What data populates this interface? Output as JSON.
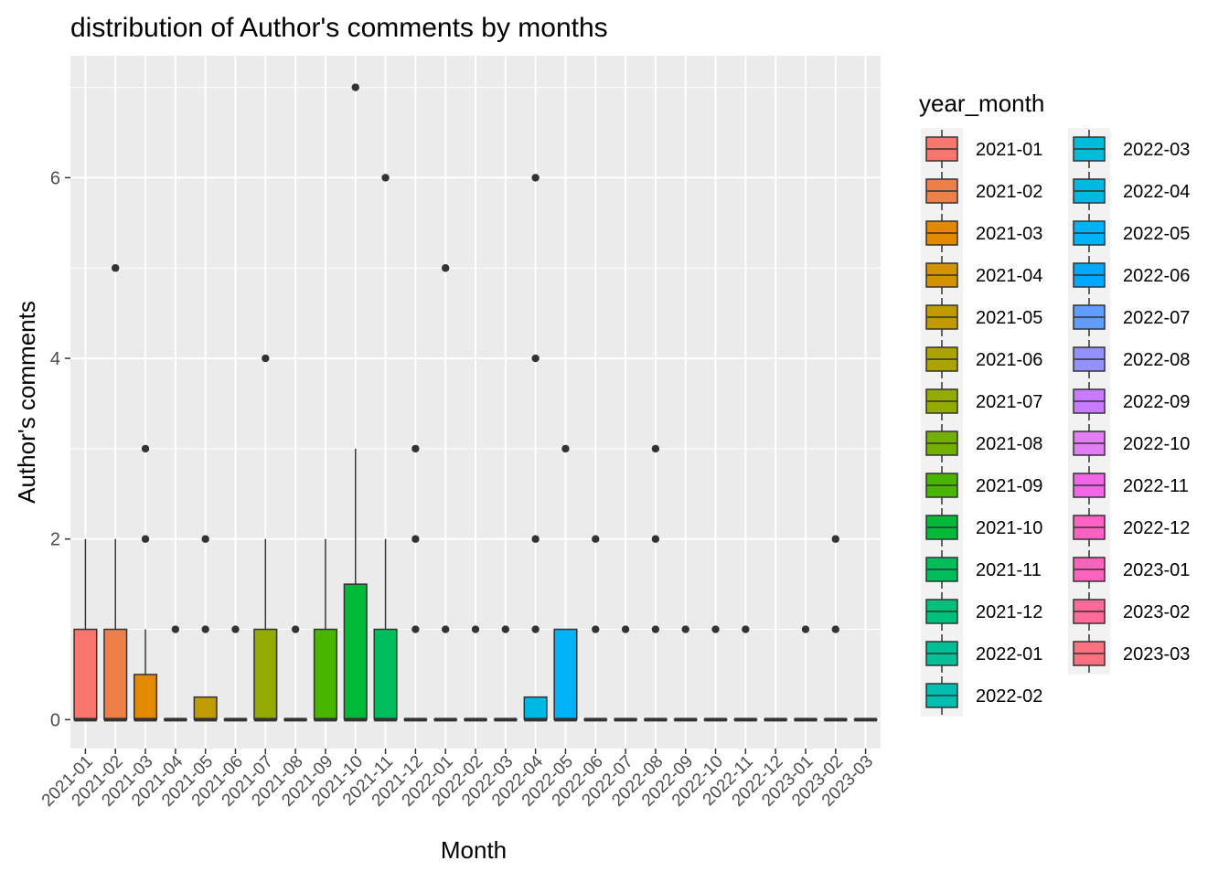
{
  "chart_data": {
    "type": "boxplot",
    "title": "distribution of Author's comments by months",
    "xlabel": "Month",
    "ylabel": "Author's comments",
    "ylim": [
      -0.32,
      7.35
    ],
    "yticks": [
      0,
      2,
      4,
      6
    ],
    "grid": true,
    "legend": {
      "title": "year_month",
      "position": "right",
      "columns": 2
    },
    "categories": [
      "2021-01",
      "2021-02",
      "2021-03",
      "2021-04",
      "2021-05",
      "2021-06",
      "2021-07",
      "2021-08",
      "2021-09",
      "2021-10",
      "2021-11",
      "2021-12",
      "2022-01",
      "2022-02",
      "2022-03",
      "2022-04",
      "2022-05",
      "2022-06",
      "2022-07",
      "2022-08",
      "2022-09",
      "2022-10",
      "2022-11",
      "2022-12",
      "2023-01",
      "2023-02",
      "2023-03"
    ],
    "colors": [
      "#F8766D",
      "#EF7F49",
      "#E38900",
      "#D39200",
      "#C09B00",
      "#AAA300",
      "#93AA00",
      "#72B000",
      "#46B600",
      "#00BA38",
      "#00BD5C",
      "#00C17A",
      "#00C097",
      "#00BFB0",
      "#00BCD8",
      "#00B9E3",
      "#00B3F7",
      "#00A9FF",
      "#619CFF",
      "#9590FF",
      "#C77CFF",
      "#E27DF5",
      "#F166E8",
      "#FF61C3",
      "#FF62BC",
      "#FF6A98",
      "#FC717F"
    ],
    "boxes": [
      {
        "q1": 0,
        "median": 0,
        "q3": 1,
        "whisker_low": 0,
        "whisker_high": 2,
        "outliers": []
      },
      {
        "q1": 0,
        "median": 0,
        "q3": 1,
        "whisker_low": 0,
        "whisker_high": 2,
        "outliers": [
          5
        ]
      },
      {
        "q1": 0,
        "median": 0,
        "q3": 0.5,
        "whisker_low": 0,
        "whisker_high": 1,
        "outliers": [
          2,
          3
        ]
      },
      {
        "q1": 0,
        "median": 0,
        "q3": 0,
        "whisker_low": 0,
        "whisker_high": 0,
        "outliers": [
          1
        ]
      },
      {
        "q1": 0,
        "median": 0,
        "q3": 0.25,
        "whisker_low": 0,
        "whisker_high": 0.25,
        "outliers": [
          1,
          2
        ]
      },
      {
        "q1": 0,
        "median": 0,
        "q3": 0,
        "whisker_low": 0,
        "whisker_high": 0,
        "outliers": [
          1
        ]
      },
      {
        "q1": 0,
        "median": 0,
        "q3": 1,
        "whisker_low": 0,
        "whisker_high": 2,
        "outliers": [
          4
        ]
      },
      {
        "q1": 0,
        "median": 0,
        "q3": 0,
        "whisker_low": 0,
        "whisker_high": 0,
        "outliers": [
          1
        ]
      },
      {
        "q1": 0,
        "median": 0,
        "q3": 1,
        "whisker_low": 0,
        "whisker_high": 2,
        "outliers": []
      },
      {
        "q1": 0,
        "median": 0,
        "q3": 1.5,
        "whisker_low": 0,
        "whisker_high": 3,
        "outliers": [
          7
        ]
      },
      {
        "q1": 0,
        "median": 0,
        "q3": 1,
        "whisker_low": 0,
        "whisker_high": 2,
        "outliers": [
          6
        ]
      },
      {
        "q1": 0,
        "median": 0,
        "q3": 0,
        "whisker_low": 0,
        "whisker_high": 0,
        "outliers": [
          1,
          2,
          3
        ]
      },
      {
        "q1": 0,
        "median": 0,
        "q3": 0,
        "whisker_low": 0,
        "whisker_high": 0,
        "outliers": [
          1,
          5
        ]
      },
      {
        "q1": 0,
        "median": 0,
        "q3": 0,
        "whisker_low": 0,
        "whisker_high": 0,
        "outliers": [
          1
        ]
      },
      {
        "q1": 0,
        "median": 0,
        "q3": 0,
        "whisker_low": 0,
        "whisker_high": 0,
        "outliers": [
          1
        ]
      },
      {
        "q1": 0,
        "median": 0,
        "q3": 0.25,
        "whisker_low": 0,
        "whisker_high": 0.25,
        "outliers": [
          1,
          2,
          4,
          6
        ]
      },
      {
        "q1": 0,
        "median": 0,
        "q3": 1,
        "whisker_low": 0,
        "whisker_high": 1,
        "outliers": [
          3
        ]
      },
      {
        "q1": 0,
        "median": 0,
        "q3": 0,
        "whisker_low": 0,
        "whisker_high": 0,
        "outliers": [
          1,
          2
        ]
      },
      {
        "q1": 0,
        "median": 0,
        "q3": 0,
        "whisker_low": 0,
        "whisker_high": 0,
        "outliers": [
          1
        ]
      },
      {
        "q1": 0,
        "median": 0,
        "q3": 0,
        "whisker_low": 0,
        "whisker_high": 0,
        "outliers": [
          1,
          2,
          3
        ]
      },
      {
        "q1": 0,
        "median": 0,
        "q3": 0,
        "whisker_low": 0,
        "whisker_high": 0,
        "outliers": [
          1
        ]
      },
      {
        "q1": 0,
        "median": 0,
        "q3": 0,
        "whisker_low": 0,
        "whisker_high": 0,
        "outliers": [
          1
        ]
      },
      {
        "q1": 0,
        "median": 0,
        "q3": 0,
        "whisker_low": 0,
        "whisker_high": 0,
        "outliers": [
          1
        ]
      },
      {
        "q1": 0,
        "median": 0,
        "q3": 0,
        "whisker_low": 0,
        "whisker_high": 0,
        "outliers": []
      },
      {
        "q1": 0,
        "median": 0,
        "q3": 0,
        "whisker_low": 0,
        "whisker_high": 0,
        "outliers": [
          1
        ]
      },
      {
        "q1": 0,
        "median": 0,
        "q3": 0,
        "whisker_low": 0,
        "whisker_high": 0,
        "outliers": [
          1,
          2
        ]
      },
      {
        "q1": 0,
        "median": 0,
        "q3": 0,
        "whisker_low": 0,
        "whisker_high": 0,
        "outliers": []
      }
    ]
  }
}
